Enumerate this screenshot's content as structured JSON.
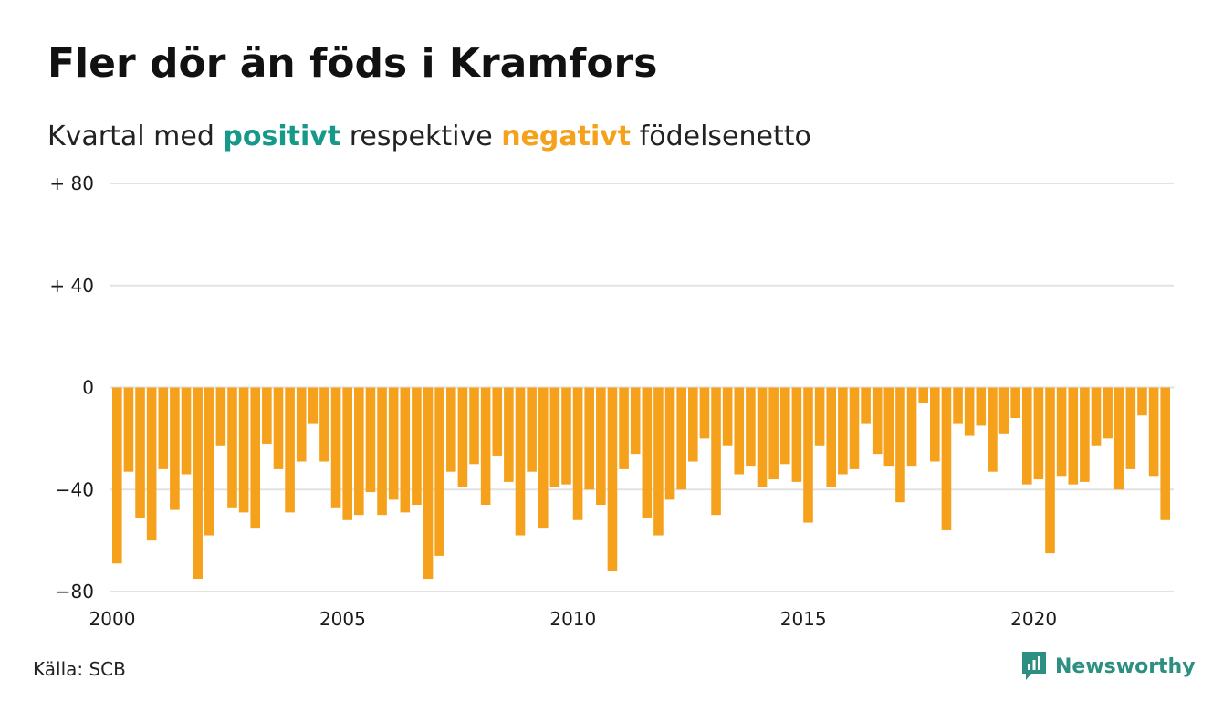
{
  "title": "Fler dör än föds i Kramfors",
  "subtitle": {
    "part1": "Kvartal med ",
    "positive": "positivt",
    "part2": " respektive ",
    "negative": "negativt",
    "part3": " födelsenetto"
  },
  "source": "Källa: SCB",
  "brand": "Newsworthy",
  "colors": {
    "positive": "#17998a",
    "negative": "#f5a11b",
    "grid": "#e2e2e2",
    "brand": "#2c8f82"
  },
  "chart_data": {
    "type": "bar",
    "title": "Fler dör än föds i Kramfors",
    "subtitle": "Kvartal med positivt respektive negativt födelsenetto",
    "x_start_year": 2000,
    "periods_per_year": 4,
    "ylim": [
      -80,
      80
    ],
    "yticks": [
      {
        "value": 80,
        "label": "+ 80"
      },
      {
        "value": 40,
        "label": "+ 40"
      },
      {
        "value": 0,
        "label": "0"
      },
      {
        "value": -40,
        "label": "−40"
      },
      {
        "value": -80,
        "label": "−80"
      }
    ],
    "xticks": [
      {
        "value": 2000,
        "label": "2000"
      },
      {
        "value": 2005,
        "label": "2005"
      },
      {
        "value": 2010,
        "label": "2010"
      },
      {
        "value": 2015,
        "label": "2015"
      },
      {
        "value": 2020,
        "label": "2020"
      }
    ],
    "grid": true,
    "values": [
      -69,
      -33,
      -51,
      -60,
      -32,
      -48,
      -34,
      -75,
      -58,
      -23,
      -47,
      -49,
      -55,
      -22,
      -32,
      -49,
      -29,
      -14,
      -29,
      -47,
      -52,
      -50,
      -41,
      -50,
      -44,
      -49,
      -46,
      -75,
      -66,
      -33,
      -39,
      -30,
      -46,
      -27,
      -37,
      -58,
      -33,
      -55,
      -39,
      -38,
      -52,
      -40,
      -46,
      -72,
      -32,
      -26,
      -51,
      -58,
      -44,
      -40,
      -29,
      -20,
      -50,
      -23,
      -34,
      -31,
      -39,
      -36,
      -30,
      -37,
      -53,
      -23,
      -39,
      -34,
      -32,
      -14,
      -26,
      -31,
      -45,
      -31,
      -6,
      -29,
      -56,
      -14,
      -19,
      -15,
      -33,
      -18,
      -12,
      -38,
      -36,
      -65,
      -35,
      -38,
      -37,
      -23,
      -20,
      -40,
      -32,
      -11,
      -35,
      -52
    ]
  }
}
